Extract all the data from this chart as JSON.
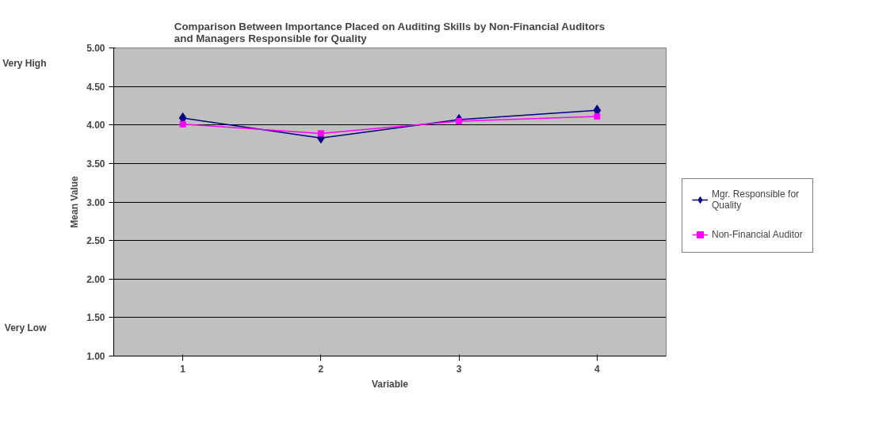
{
  "chart_data": {
    "type": "line",
    "title": "Comparison Between Importance Placed on Auditing Skills by Non-Financial Auditors\nand Managers Responsible for Quality",
    "xlabel": "Variable",
    "ylabel": "Mean Value",
    "x": [
      1,
      2,
      3,
      4
    ],
    "xlim": [
      0.5,
      4.5
    ],
    "xticks": [
      1,
      2,
      3,
      4
    ],
    "ylim": [
      1.0,
      5.0
    ],
    "yticks": [
      {
        "value": 1.0,
        "label": "1.00"
      },
      {
        "value": 1.5,
        "label": "1.50"
      },
      {
        "value": 2.0,
        "label": "2.00"
      },
      {
        "value": 2.5,
        "label": "2.50"
      },
      {
        "value": 3.0,
        "label": "3.00"
      },
      {
        "value": 3.5,
        "label": "3.50"
      },
      {
        "value": 4.0,
        "label": "4.00"
      },
      {
        "value": 4.5,
        "label": "4.50"
      },
      {
        "value": 5.0,
        "label": "5.00"
      }
    ],
    "grid": "y",
    "legend": "right",
    "annotations": [
      "Very High",
      "Very Low"
    ],
    "series": [
      {
        "name": "Mgr. Responsible for\nQuality",
        "color": "#000080",
        "marker": "diamond",
        "values": [
          4.09,
          3.83,
          4.07,
          4.19
        ]
      },
      {
        "name": "Non-Financial Auditor",
        "color": "#ff00ff",
        "marker": "square",
        "values": [
          4.01,
          3.89,
          4.05,
          4.11
        ]
      }
    ]
  }
}
